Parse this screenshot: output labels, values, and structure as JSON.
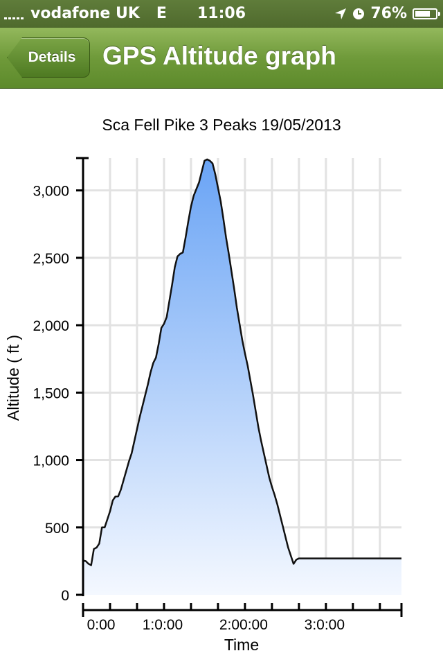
{
  "status": {
    "carrier": "vodafone UK",
    "network": "E",
    "time": "11:06",
    "battery": "76%",
    "battery_level": 0.76
  },
  "nav": {
    "back_label": "Details",
    "title": "GPS Altitude graph"
  },
  "colors": {
    "nav_green": "#6f9a3a",
    "area_top": "#6aa4f5",
    "area_bottom": "#f4f8ff",
    "line": "#111111",
    "grid": "#e2e2e2"
  },
  "chart_data": {
    "type": "area",
    "title": "Sca Fell Pike 3 Peaks 19/05/2013",
    "xlabel": "Time",
    "ylabel": "Altitude ( ft )",
    "x_unit": "minutes",
    "xlim": [
      0,
      236
    ],
    "ylim": [
      0,
      3240
    ],
    "y_ticks": [
      {
        "value": 0,
        "label": "0"
      },
      {
        "value": 500,
        "label": "500"
      },
      {
        "value": 1000,
        "label": "1,000"
      },
      {
        "value": 1500,
        "label": "1,500"
      },
      {
        "value": 2000,
        "label": "2,000"
      },
      {
        "value": 2500,
        "label": "2,500"
      },
      {
        "value": 3000,
        "label": "3,000"
      }
    ],
    "x_ticks": [
      {
        "value": 0,
        "label": "0:00"
      },
      {
        "value": 60,
        "label": "1:0:00"
      },
      {
        "value": 120,
        "label": "2:00:00"
      },
      {
        "value": 180,
        "label": "3:0:00"
      }
    ],
    "grid": true,
    "series": [
      {
        "x": [
          0,
          2,
          4,
          6,
          8,
          10,
          12,
          14,
          16,
          18,
          20,
          22,
          24,
          26,
          28,
          30,
          32,
          34,
          36,
          38,
          40,
          42,
          44,
          46,
          48,
          50,
          52,
          54,
          56,
          58,
          60,
          62,
          64,
          66,
          68,
          70,
          72,
          74,
          76,
          78,
          80,
          82,
          84,
          86,
          88,
          90,
          92,
          94,
          96,
          98,
          100,
          102,
          104,
          106,
          108,
          110,
          112,
          114,
          116,
          118,
          120,
          122,
          124,
          126,
          128,
          130,
          132,
          134,
          136,
          138,
          140,
          142,
          144,
          146,
          148,
          150,
          152,
          154,
          156,
          158,
          160,
          162,
          164,
          166,
          168,
          170,
          172,
          174,
          176,
          178,
          180,
          182,
          184,
          186,
          188,
          190,
          192,
          194,
          196,
          198,
          200,
          202,
          204,
          206,
          208,
          210,
          212,
          214,
          216,
          218,
          220,
          222,
          224,
          226,
          228,
          230,
          232,
          234,
          236
        ],
        "y": [
          255,
          250,
          230,
          220,
          340,
          350,
          380,
          500,
          500,
          560,
          620,
          700,
          730,
          730,
          780,
          850,
          920,
          990,
          1050,
          1140,
          1230,
          1320,
          1400,
          1480,
          1560,
          1650,
          1720,
          1760,
          1860,
          1980,
          2010,
          2060,
          2180,
          2300,
          2430,
          2510,
          2530,
          2540,
          2650,
          2770,
          2880,
          2960,
          3010,
          3060,
          3140,
          3220,
          3230,
          3220,
          3200,
          3120,
          3020,
          2920,
          2790,
          2650,
          2530,
          2400,
          2270,
          2130,
          2010,
          1890,
          1790,
          1700,
          1590,
          1480,
          1360,
          1240,
          1140,
          1050,
          960,
          870,
          800,
          740,
          670,
          590,
          510,
          430,
          350,
          290,
          230,
          260,
          270,
          270,
          270,
          270,
          270,
          270,
          270,
          270,
          270,
          270,
          270,
          270,
          270,
          270,
          270,
          270,
          270,
          270,
          270,
          270,
          270,
          270,
          270,
          270,
          270,
          270,
          270,
          270,
          270,
          270,
          270,
          270,
          270,
          270,
          270,
          270,
          270,
          270,
          270
        ]
      }
    ]
  }
}
